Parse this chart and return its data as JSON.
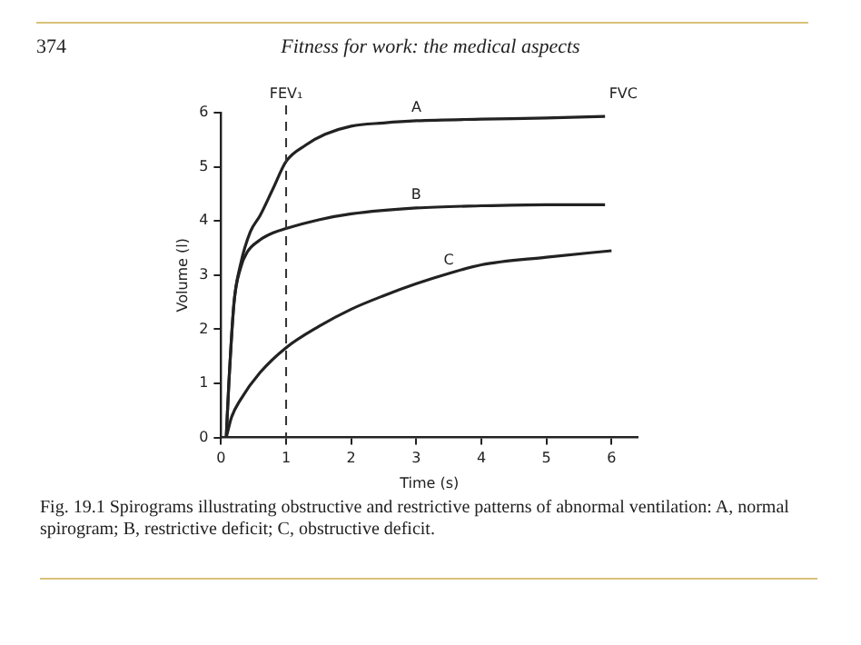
{
  "chart_data": {
    "type": "line",
    "xlabel": "Time (s)",
    "ylabel": "Volume (l)",
    "xlim": [
      0,
      6.4
    ],
    "ylim": [
      0,
      6
    ],
    "xticks": [
      0,
      1,
      2,
      3,
      4,
      5,
      6
    ],
    "yticks": [
      0,
      1,
      2,
      3,
      4,
      5,
      6
    ],
    "grid": false,
    "legend": false,
    "marker": "none",
    "line_style": "solid",
    "series": [
      {
        "name": "A",
        "color": "#222222",
        "x": [
          0.08,
          0.12,
          0.2,
          0.3,
          0.45,
          0.6,
          0.8,
          1.0,
          1.3,
          1.6,
          2.0,
          2.5,
          3.0,
          4.0,
          5.0,
          5.9
        ],
        "values": [
          0,
          1,
          2.5,
          3.2,
          3.8,
          4.1,
          4.6,
          5.1,
          5.4,
          5.6,
          5.75,
          5.81,
          5.85,
          5.88,
          5.9,
          5.93
        ]
      },
      {
        "name": "B",
        "color": "#222222",
        "x": [
          0.08,
          0.12,
          0.2,
          0.3,
          0.4,
          0.6,
          0.8,
          1.0,
          1.5,
          2.0,
          3.0,
          4.0,
          5.0,
          5.9
        ],
        "values": [
          0,
          1,
          2.5,
          3.13,
          3.42,
          3.65,
          3.78,
          3.86,
          4.02,
          4.13,
          4.24,
          4.28,
          4.3,
          4.3
        ]
      },
      {
        "name": "C",
        "color": "#222222",
        "x": [
          0.08,
          0.16,
          0.3,
          0.6,
          1.0,
          1.5,
          2.0,
          2.5,
          3.0,
          3.5,
          4.0,
          5.0,
          6.0
        ],
        "values": [
          0,
          0.37,
          0.7,
          1.2,
          1.66,
          2.05,
          2.37,
          2.62,
          2.84,
          3.03,
          3.19,
          3.33,
          3.45
        ]
      }
    ],
    "ref_lines": [
      {
        "axis": "x",
        "value": 1,
        "label": "FEV₁",
        "line_style": "dashed",
        "color": "#333333"
      }
    ],
    "annotations": [
      "FVC",
      "374",
      "Fitness for work: the medical aspects",
      "Fig. 19.1 Spirograms illustrating obstructive and restrictive patterns of abnormal ventilation: A, normal spirogram; B, restrictive deficit; C, obstructive deficit."
    ]
  }
}
